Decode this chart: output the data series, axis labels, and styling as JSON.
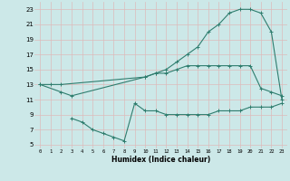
{
  "xlabel": "Humidex (Indice chaleur)",
  "bg_color": "#cce8e8",
  "grid_color": "#b0d0d0",
  "line_color": "#2e7d6e",
  "xlim": [
    -0.5,
    23.5
  ],
  "ylim": [
    4.5,
    24
  ],
  "xticks": [
    0,
    1,
    2,
    3,
    4,
    5,
    6,
    7,
    8,
    9,
    10,
    11,
    12,
    13,
    14,
    15,
    16,
    17,
    18,
    19,
    20,
    21,
    22,
    23
  ],
  "yticks": [
    5,
    7,
    9,
    11,
    13,
    15,
    17,
    19,
    21,
    23
  ],
  "curve1_x": [
    0,
    1,
    2,
    10,
    11,
    12,
    13,
    14,
    15,
    16,
    17,
    18,
    19,
    20,
    21,
    22,
    23
  ],
  "curve1_y": [
    13,
    13,
    13,
    14,
    14.5,
    15,
    16,
    17,
    18,
    20,
    21,
    22.5,
    23,
    23,
    22.5,
    20,
    11
  ],
  "curve2_x": [
    0,
    2,
    3,
    10,
    11,
    12,
    13,
    14,
    15,
    16,
    17,
    18,
    19,
    20,
    21,
    22,
    23
  ],
  "curve2_y": [
    13,
    12,
    11.5,
    14,
    14.5,
    14.5,
    15,
    15.5,
    15.5,
    15.5,
    15.5,
    15.5,
    15.5,
    15.5,
    12.5,
    12,
    11.5
  ],
  "curve3_x": [
    3,
    4,
    5,
    6,
    7,
    8,
    9,
    10,
    11,
    12,
    13,
    14,
    15,
    16,
    17,
    18,
    19,
    20,
    21,
    22,
    23
  ],
  "curve3_y": [
    8.5,
    8,
    7,
    6.5,
    6,
    5.5,
    10.5,
    9.5,
    9.5,
    9,
    9,
    9,
    9,
    9,
    9.5,
    9.5,
    9.5,
    10,
    10,
    10,
    10.5
  ]
}
